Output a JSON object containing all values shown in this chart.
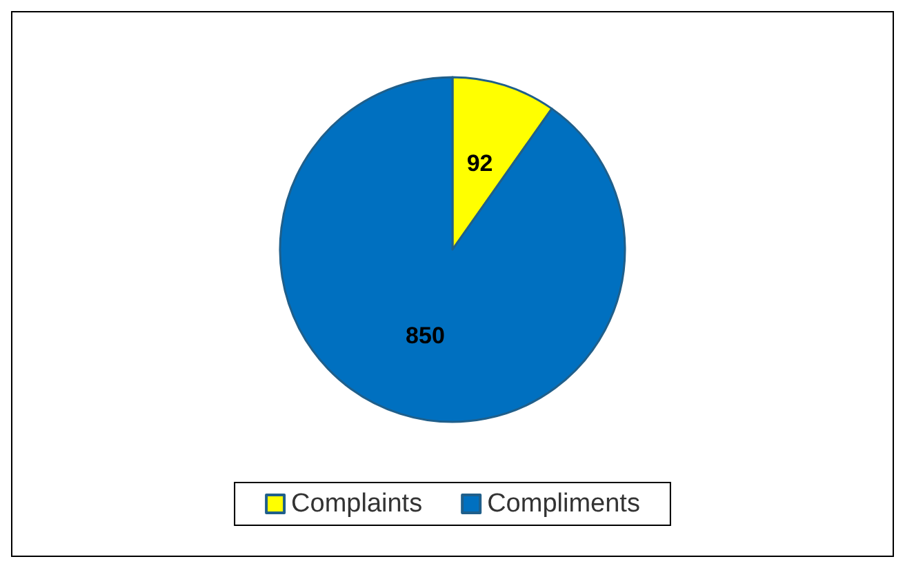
{
  "chart_data": {
    "type": "pie",
    "categories": [
      "Complaints",
      "Compliments"
    ],
    "values": [
      92,
      850
    ],
    "colors": [
      "#ffff00",
      "#0070c0"
    ],
    "data_labels": true,
    "legend": "bottom"
  }
}
